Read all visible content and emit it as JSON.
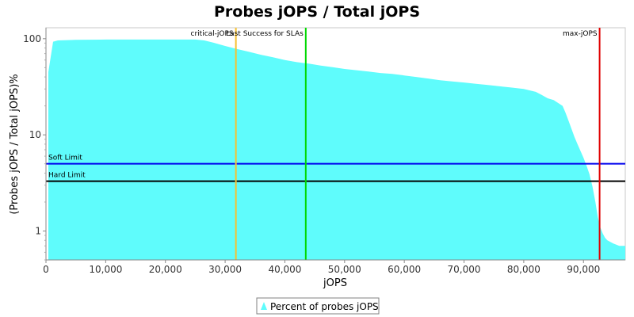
{
  "chart_data": {
    "type": "area",
    "title": "Probes jOPS / Total jOPS",
    "xlabel": "jOPS",
    "ylabel": "(Probes jOPS / Total jOPS)%",
    "xlim": [
      0,
      97000
    ],
    "ylim": [
      0.5,
      130
    ],
    "yscale": "log",
    "grid": false,
    "x_ticks": [
      0,
      10000,
      20000,
      30000,
      40000,
      50000,
      60000,
      70000,
      80000,
      90000
    ],
    "x_tick_labels": [
      "0",
      "10,000",
      "20,000",
      "30,000",
      "40,000",
      "50,000",
      "60,000",
      "70,000",
      "80,000",
      "90,000"
    ],
    "y_ticks": [
      1,
      10,
      100
    ],
    "y_tick_labels": [
      "1",
      "10",
      "100"
    ],
    "legend_position": "bottom-center",
    "series": [
      {
        "name": "Percent of probes jOPS",
        "color": "#5ffcfc",
        "x": [
          400,
          1200,
          2000,
          5000,
          10000,
          15000,
          20000,
          25000,
          26500,
          28000,
          30000,
          32000,
          34000,
          36000,
          38000,
          40000,
          42000,
          44000,
          46000,
          48000,
          50000,
          52000,
          54000,
          56000,
          58000,
          60000,
          62000,
          64000,
          66000,
          68000,
          70000,
          72000,
          74000,
          76000,
          78000,
          80000,
          82000,
          83000,
          84000,
          85000,
          86000,
          86500,
          87000,
          87500,
          88000,
          88500,
          89000,
          89500,
          90000,
          90500,
          91000,
          91500,
          92000,
          92400,
          92800,
          93200,
          93600,
          94000,
          95000,
          96000,
          97000
        ],
        "y": [
          45,
          93,
          96,
          97.5,
          98,
          98,
          98,
          98,
          96,
          91,
          84,
          78,
          73,
          68,
          64,
          60,
          57,
          55,
          52.5,
          50.5,
          48.5,
          47,
          45.5,
          44,
          43,
          41.5,
          40,
          38.5,
          37,
          36,
          35,
          34,
          33,
          32,
          31,
          30,
          28,
          26,
          24,
          23,
          21,
          20,
          17,
          14,
          11.5,
          9.5,
          8,
          6.8,
          5.8,
          4.8,
          3.9,
          2.9,
          2.0,
          1.4,
          1.1,
          0.95,
          0.85,
          0.8,
          0.74,
          0.7,
          0.7
        ]
      }
    ],
    "vertical_lines": [
      {
        "label": "critical-jOPS",
        "x": 31800,
        "color": "#f6c131"
      },
      {
        "label": "Last Success for SLAs",
        "x": 43500,
        "color": "#00d800"
      },
      {
        "label": "max-jOPS",
        "x": 92700,
        "color": "#e00000"
      }
    ],
    "horizontal_lines": [
      {
        "label": "Soft Limit",
        "y": 5,
        "color": "#0000ee"
      },
      {
        "label": "Hard Limit",
        "y": 3.3,
        "color": "#000000"
      }
    ]
  }
}
